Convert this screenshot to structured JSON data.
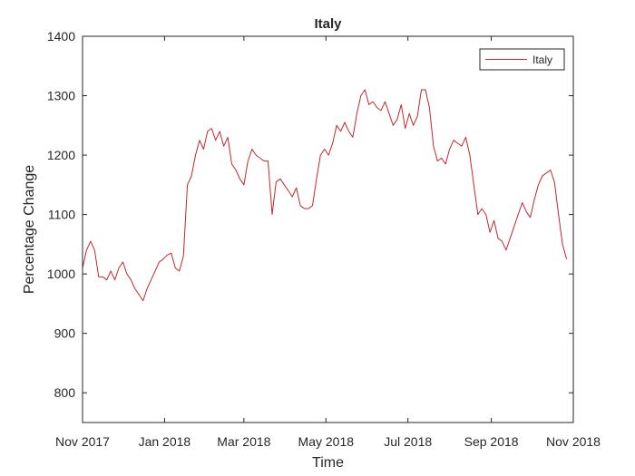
{
  "chart_data": {
    "type": "line",
    "title": "Italy",
    "xlabel": "Time",
    "ylabel": "Percentage Change",
    "xlim": [
      "2017-11-01",
      "2018-11-01"
    ],
    "ylim": [
      750,
      1400
    ],
    "x_ticks": [
      "2017-11-01",
      "2018-01-01",
      "2018-03-01",
      "2018-05-01",
      "2018-07-01",
      "2018-09-01",
      "2018-11-01"
    ],
    "x_tick_labels": [
      "Nov 2017",
      "Jan 2018",
      "Mar 2018",
      "May 2018",
      "Jul 2018",
      "Sep 2018",
      "Nov 2018"
    ],
    "y_ticks": [
      800,
      900,
      1000,
      1100,
      1200,
      1300,
      1400
    ],
    "y_tick_labels": [
      "800",
      "900",
      "1000",
      "1100",
      "1200",
      "1300",
      "1400"
    ],
    "grid": false,
    "legend_position": "top-right",
    "series": [
      {
        "name": "Italy",
        "color": "#c1272d",
        "x": [
          "2017-11-01",
          "2017-11-04",
          "2017-11-07",
          "2017-11-10",
          "2017-11-13",
          "2017-11-16",
          "2017-11-19",
          "2017-11-22",
          "2017-11-25",
          "2017-11-28",
          "2017-12-01",
          "2017-12-04",
          "2017-12-07",
          "2017-12-10",
          "2017-12-13",
          "2017-12-16",
          "2017-12-19",
          "2017-12-22",
          "2017-12-25",
          "2017-12-28",
          "2017-12-31",
          "2018-01-03",
          "2018-01-06",
          "2018-01-09",
          "2018-01-12",
          "2018-01-15",
          "2018-01-18",
          "2018-01-21",
          "2018-01-24",
          "2018-01-27",
          "2018-01-30",
          "2018-02-02",
          "2018-02-05",
          "2018-02-08",
          "2018-02-11",
          "2018-02-14",
          "2018-02-17",
          "2018-02-20",
          "2018-02-23",
          "2018-02-26",
          "2018-03-01",
          "2018-03-04",
          "2018-03-07",
          "2018-03-10",
          "2018-03-13",
          "2018-03-16",
          "2018-03-19",
          "2018-03-22",
          "2018-03-25",
          "2018-03-28",
          "2018-03-31",
          "2018-04-03",
          "2018-04-06",
          "2018-04-09",
          "2018-04-12",
          "2018-04-15",
          "2018-04-18",
          "2018-04-21",
          "2018-04-24",
          "2018-04-27",
          "2018-04-30",
          "2018-05-03",
          "2018-05-06",
          "2018-05-09",
          "2018-05-12",
          "2018-05-15",
          "2018-05-18",
          "2018-05-21",
          "2018-05-24",
          "2018-05-27",
          "2018-05-30",
          "2018-06-02",
          "2018-06-05",
          "2018-06-08",
          "2018-06-11",
          "2018-06-14",
          "2018-06-17",
          "2018-06-20",
          "2018-06-23",
          "2018-06-26",
          "2018-06-29",
          "2018-07-02",
          "2018-07-05",
          "2018-07-08",
          "2018-07-11",
          "2018-07-14",
          "2018-07-17",
          "2018-07-20",
          "2018-07-23",
          "2018-07-26",
          "2018-07-29",
          "2018-08-01",
          "2018-08-04",
          "2018-08-07",
          "2018-08-10",
          "2018-08-13",
          "2018-08-16",
          "2018-08-19",
          "2018-08-22",
          "2018-08-25",
          "2018-08-28",
          "2018-08-31",
          "2018-09-03",
          "2018-09-06",
          "2018-09-09",
          "2018-09-12",
          "2018-09-15",
          "2018-09-18",
          "2018-09-21",
          "2018-09-24",
          "2018-09-27",
          "2018-09-30",
          "2018-10-03",
          "2018-10-06",
          "2018-10-09",
          "2018-10-12",
          "2018-10-15",
          "2018-10-18",
          "2018-10-21",
          "2018-10-24",
          "2018-10-27"
        ],
        "values": [
          1010,
          1040,
          1055,
          1040,
          995,
          995,
          990,
          1005,
          990,
          1010,
          1020,
          1000,
          990,
          975,
          965,
          955,
          975,
          990,
          1005,
          1020,
          1025,
          1032,
          1035,
          1010,
          1005,
          1030,
          1150,
          1165,
          1200,
          1225,
          1210,
          1240,
          1245,
          1225,
          1240,
          1215,
          1230,
          1185,
          1175,
          1160,
          1150,
          1190,
          1210,
          1200,
          1195,
          1190,
          1190,
          1100,
          1155,
          1160,
          1150,
          1140,
          1130,
          1145,
          1115,
          1110,
          1110,
          1115,
          1160,
          1200,
          1210,
          1200,
          1220,
          1250,
          1240,
          1255,
          1240,
          1230,
          1270,
          1300,
          1310,
          1285,
          1290,
          1280,
          1275,
          1290,
          1270,
          1250,
          1260,
          1285,
          1245,
          1270,
          1250,
          1265,
          1310,
          1310,
          1280,
          1215,
          1190,
          1195,
          1185,
          1210,
          1225,
          1220,
          1215,
          1230,
          1200,
          1150,
          1100,
          1110,
          1100,
          1070,
          1090,
          1060,
          1055,
          1040,
          1060,
          1080,
          1100,
          1120,
          1105,
          1095,
          1125,
          1150,
          1165,
          1170,
          1175,
          1155,
          1100,
          1050,
          1025
        ]
      }
    ]
  }
}
